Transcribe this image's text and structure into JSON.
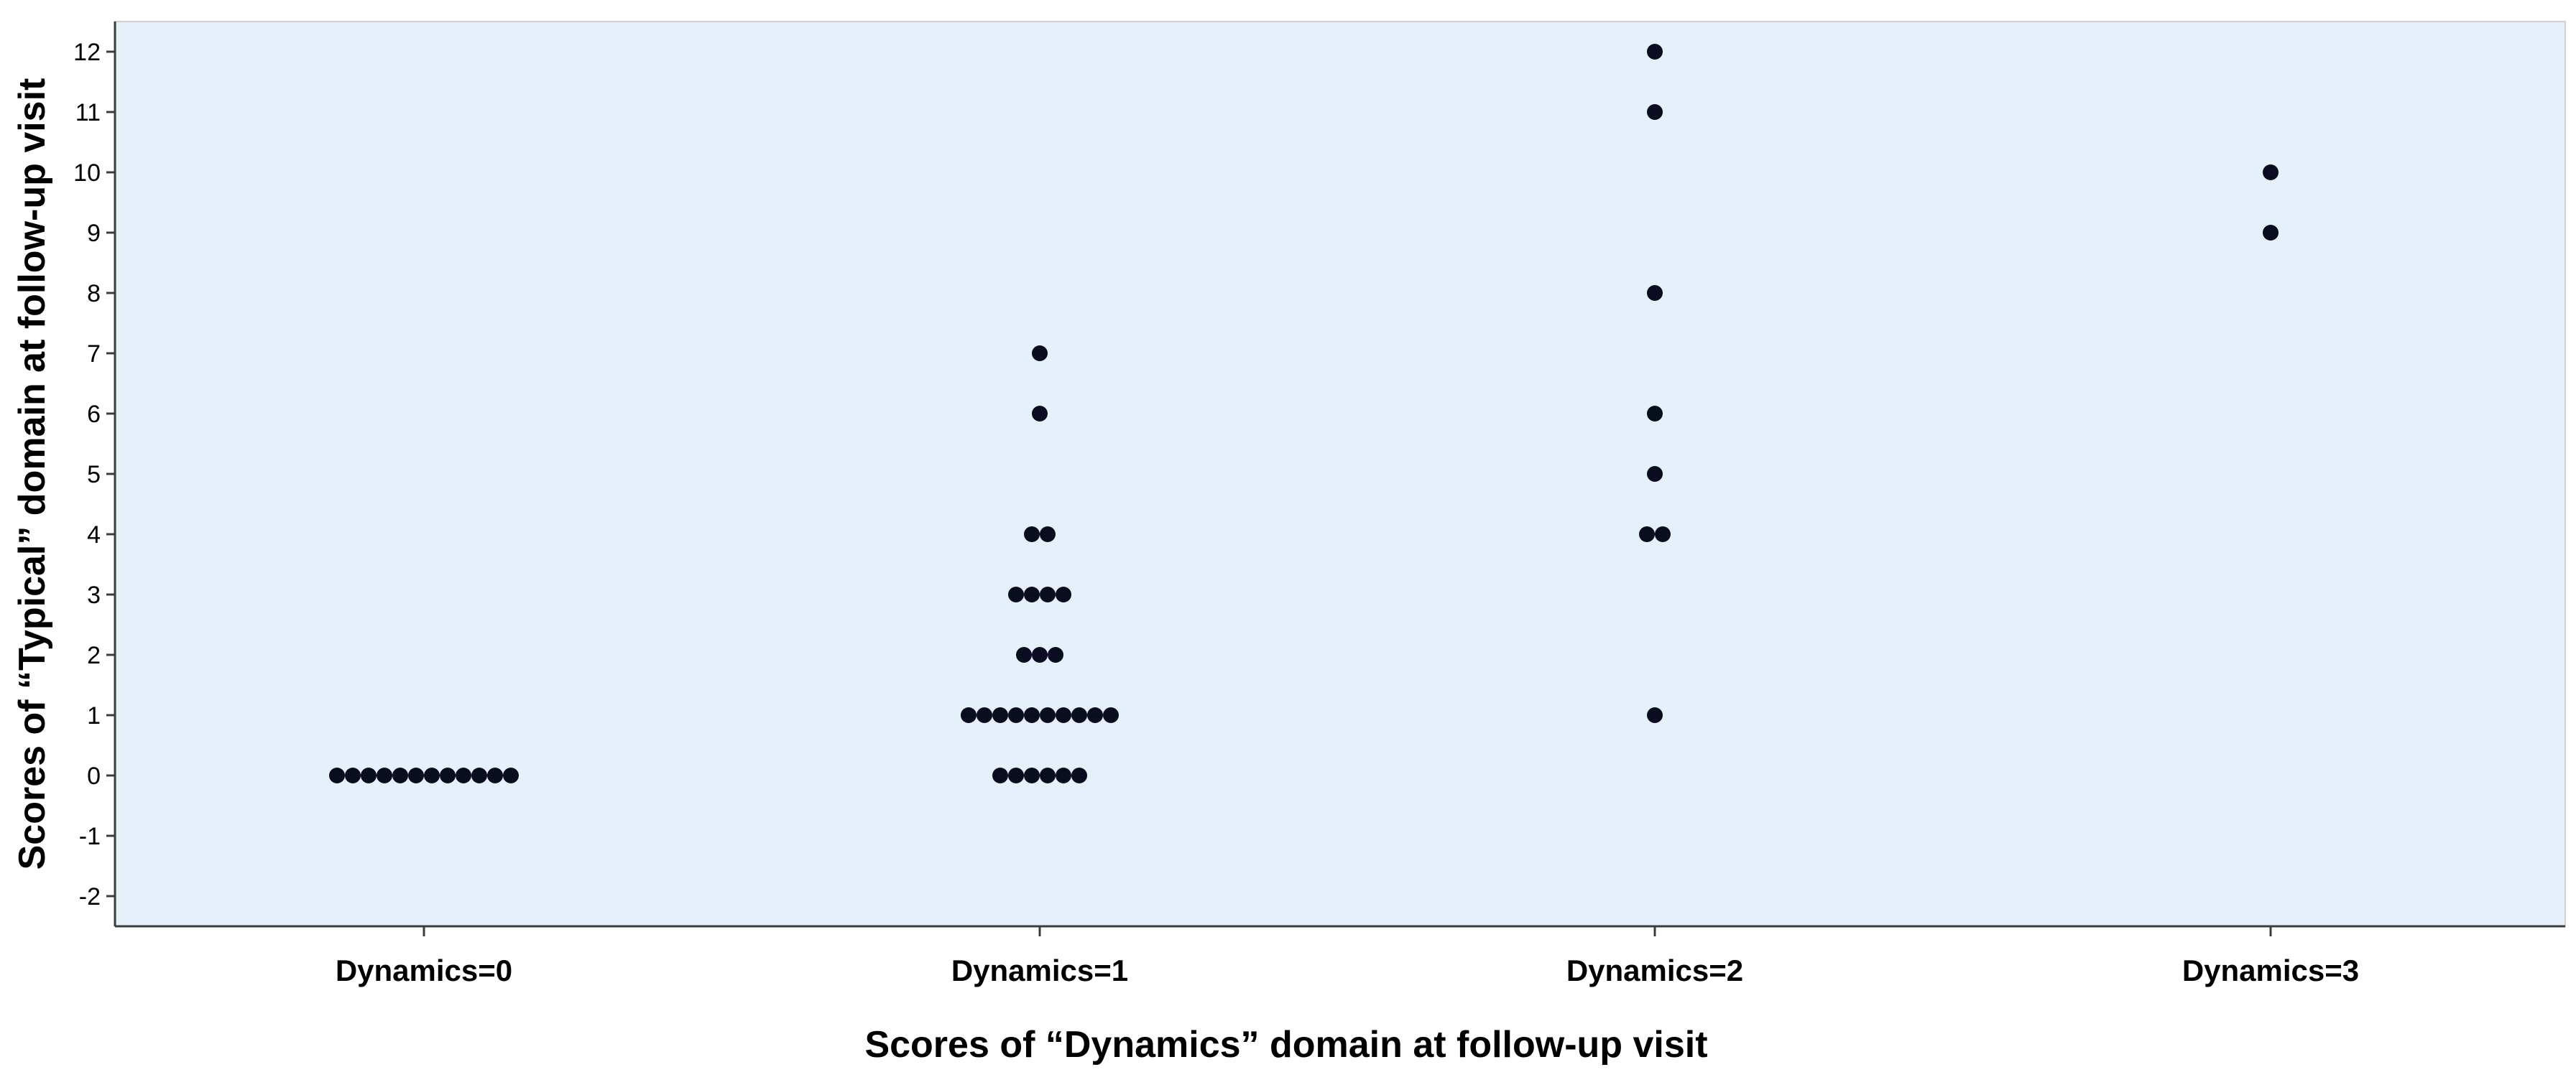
{
  "chart_data": {
    "type": "scatter",
    "title": "",
    "xlabel": "Scores of “Dynamics” domain at follow-up visit",
    "ylabel": "Scores of “Typical” domain at follow-up visit",
    "categories": [
      "Dynamics=0",
      "Dynamics=1",
      "Dynamics=2",
      "Dynamics=3"
    ],
    "ylim": [
      -2.5,
      12.5
    ],
    "yticks": [
      "-2",
      "-1",
      "0",
      "1",
      "2",
      "3",
      "4",
      "5",
      "6",
      "7",
      "8",
      "9",
      "10",
      "11",
      "12"
    ],
    "grid": false,
    "legend": "none",
    "plot_background": "#e6f0fa",
    "marker_color": "#0a0d1f",
    "axis_color": "#3c3c3c",
    "points": [
      {
        "x": "Dynamics=0",
        "y": 0,
        "count": 12
      },
      {
        "x": "Dynamics=1",
        "y": 7,
        "count": 1
      },
      {
        "x": "Dynamics=1",
        "y": 6,
        "count": 1
      },
      {
        "x": "Dynamics=1",
        "y": 4,
        "count": 2
      },
      {
        "x": "Dynamics=1",
        "y": 3,
        "count": 4
      },
      {
        "x": "Dynamics=1",
        "y": 2,
        "count": 3
      },
      {
        "x": "Dynamics=1",
        "y": 1,
        "count": 10
      },
      {
        "x": "Dynamics=1",
        "y": 0,
        "count": 6
      },
      {
        "x": "Dynamics=2",
        "y": 12,
        "count": 1
      },
      {
        "x": "Dynamics=2",
        "y": 11,
        "count": 1
      },
      {
        "x": "Dynamics=2",
        "y": 8,
        "count": 1
      },
      {
        "x": "Dynamics=2",
        "y": 6,
        "count": 1
      },
      {
        "x": "Dynamics=2",
        "y": 5,
        "count": 1
      },
      {
        "x": "Dynamics=2",
        "y": 4,
        "count": 2
      },
      {
        "x": "Dynamics=2",
        "y": 1,
        "count": 1
      },
      {
        "x": "Dynamics=3",
        "y": 10,
        "count": 1
      },
      {
        "x": "Dynamics=3",
        "y": 9,
        "count": 1
      }
    ]
  }
}
